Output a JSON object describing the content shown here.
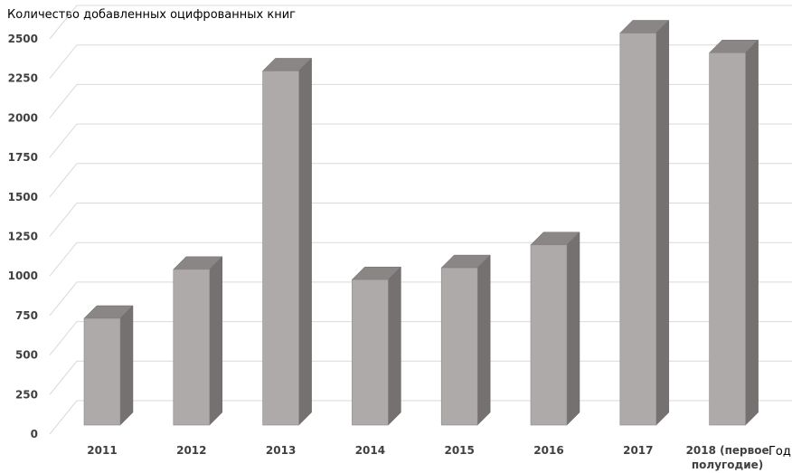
{
  "chart_data": {
    "type": "bar",
    "title": "",
    "ylabel": "Количество добавленных оцифрованных книг",
    "xlabel": "Год",
    "categories": [
      "2011",
      "2012",
      "2013",
      "2014",
      "2015",
      "2016",
      "2017",
      "2018 (первое полугодие)"
    ],
    "category_lines": [
      [
        "2011"
      ],
      [
        "2012"
      ],
      [
        "2013"
      ],
      [
        "2014"
      ],
      [
        "2015"
      ],
      [
        "2016"
      ],
      [
        "2017"
      ],
      [
        "2018 (первое",
        "полугодие)"
      ]
    ],
    "values": [
      675,
      985,
      2240,
      920,
      995,
      1140,
      2480,
      2355
    ],
    "ylim": [
      0,
      2500
    ],
    "yticks": [
      0,
      250,
      500,
      750,
      1000,
      1250,
      1500,
      1750,
      2000,
      2250,
      2500
    ],
    "grid": true,
    "style": "3d-column",
    "colors": {
      "front": "#aeaaaa",
      "side": "#767171",
      "top": "#8a8686",
      "grid": "#d9d9d9"
    }
  }
}
